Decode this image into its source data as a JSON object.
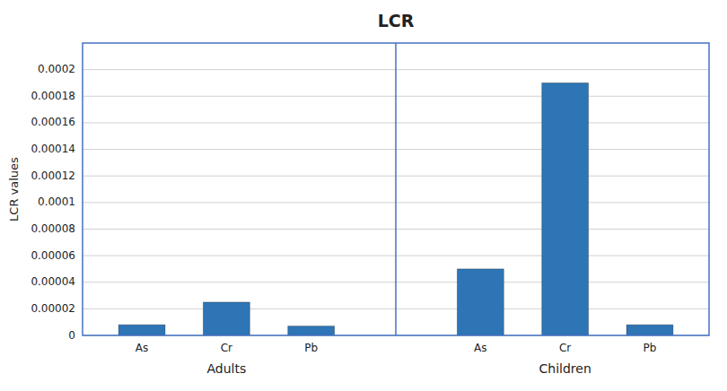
{
  "chart_data": {
    "type": "bar",
    "title": "LCR",
    "y_label": "LCR values",
    "categories": [
      "As",
      "Cr",
      "Pb",
      "As",
      "Cr",
      "Pb"
    ],
    "group_labels": [
      "Adults",
      "Children"
    ],
    "values": [
      8e-06,
      2.5e-05,
      7e-06,
      5e-05,
      0.00019,
      8e-06
    ],
    "color": "#2E75B6",
    "ylim": [
      0,
      0.00022
    ],
    "yticks": [
      0,
      2e-05,
      4e-05,
      6e-05,
      8e-05,
      0.0001,
      0.00012,
      0.00014,
      0.00016,
      0.00018,
      0.0002
    ],
    "grid": true
  }
}
